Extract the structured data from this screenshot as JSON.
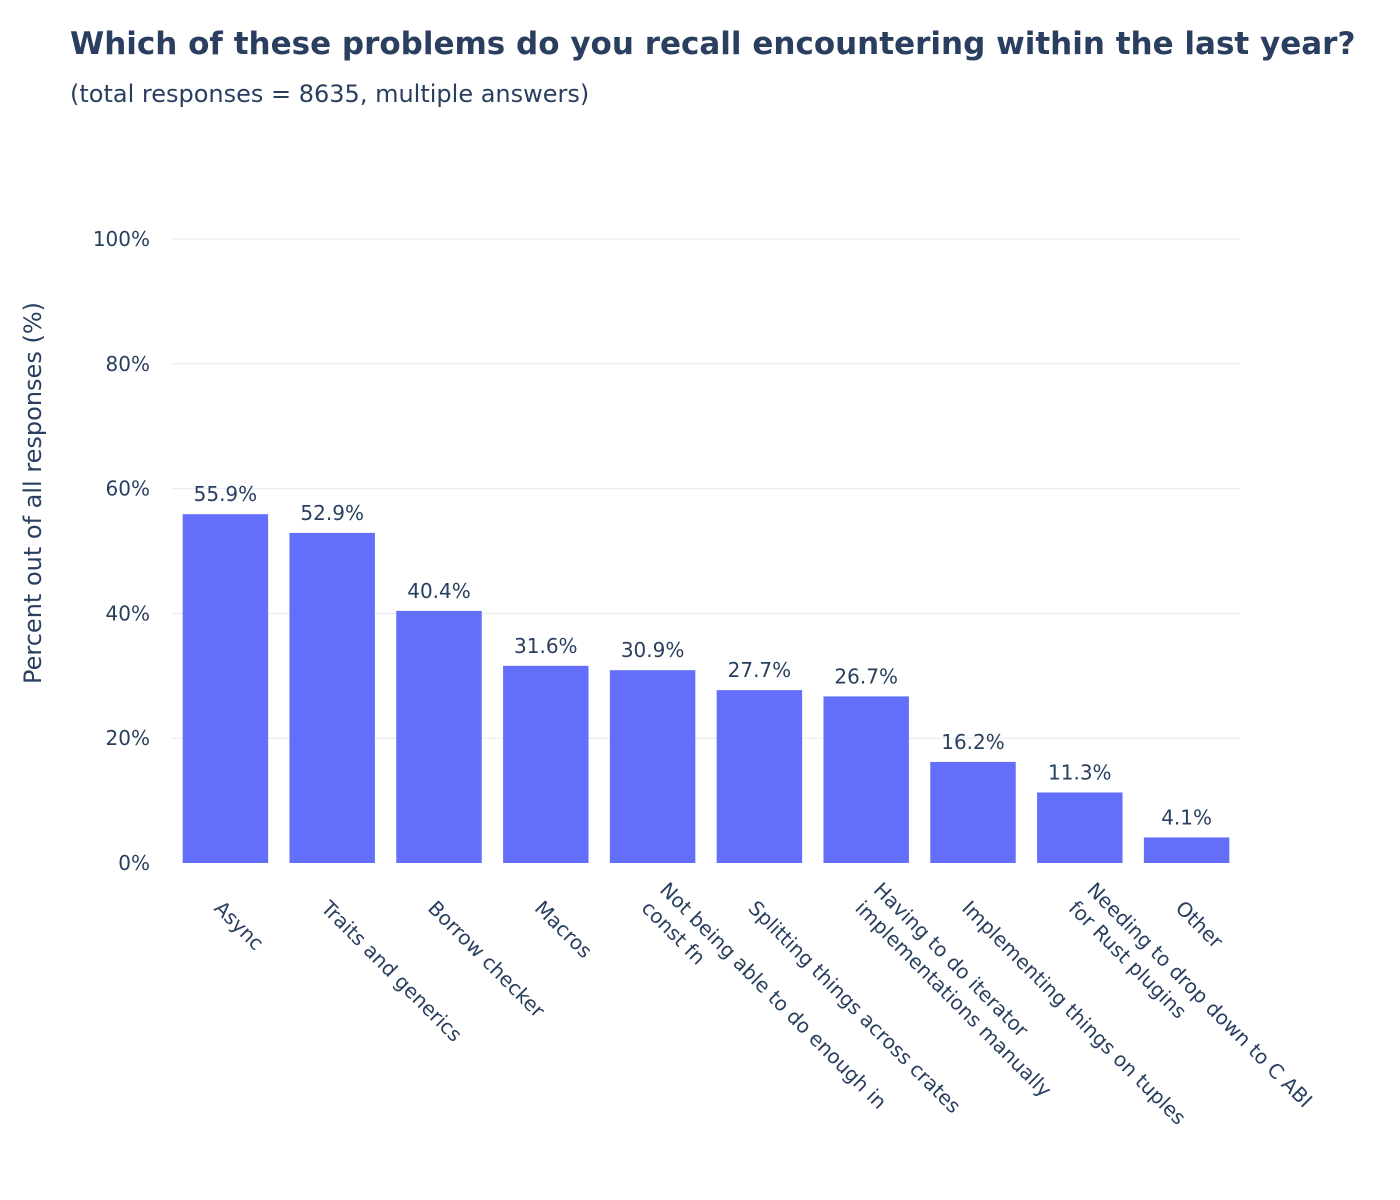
{
  "chart_data": {
    "type": "bar",
    "title": "Which of these problems do you recall encountering within the last year?",
    "subtitle": "(total responses = 8635, multiple answers)",
    "xlabel": "",
    "ylabel": "Percent out of all responses (%)",
    "ylim": [
      0,
      100
    ],
    "yticks": [
      0,
      20,
      40,
      60,
      80,
      100
    ],
    "ytick_labels": [
      "0%",
      "20%",
      "40%",
      "60%",
      "80%",
      "100%"
    ],
    "grid": true,
    "bar_color": "#636efa",
    "categories": [
      [
        "Async"
      ],
      [
        "Traits and generics"
      ],
      [
        "Borrow checker"
      ],
      [
        "Macros"
      ],
      [
        "Not being able to do enough in",
        "const fn"
      ],
      [
        "Splitting things across crates"
      ],
      [
        "Having to do iterator",
        "implementations manually"
      ],
      [
        "Implementing things on tuples"
      ],
      [
        "Needing to drop down to C ABI",
        "for Rust plugins"
      ],
      [
        "Other"
      ]
    ],
    "values": [
      55.9,
      52.9,
      40.4,
      31.6,
      30.9,
      27.7,
      26.7,
      16.2,
      11.3,
      4.1
    ],
    "value_labels": [
      "55.9%",
      "52.9%",
      "40.4%",
      "31.6%",
      "30.9%",
      "27.7%",
      "26.7%",
      "16.2%",
      "11.3%",
      "4.1%"
    ]
  }
}
